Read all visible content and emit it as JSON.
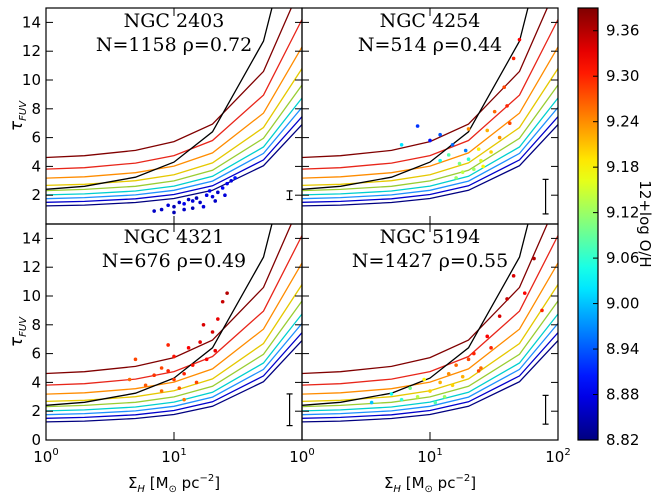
{
  "chart_data": [
    {
      "type": "scatter",
      "title": "NGC 2403",
      "subtitle": "N=1158 ρ=0.72",
      "xscale": "log",
      "xlim": [
        1,
        100
      ],
      "ylim": [
        0,
        15
      ],
      "xticks": [
        {
          "value": 1,
          "label": "10",
          "exponent": "0"
        },
        {
          "value": 10,
          "label": "10",
          "exponent": "1"
        }
      ],
      "x_tick_labels": false,
      "yticks": [
        2,
        4,
        6,
        8,
        10,
        12,
        14
      ],
      "y_tick_labels": true,
      "y_label": {
        "symbol": "τ",
        "subscript": "FUV"
      },
      "x": [
        8,
        9,
        10,
        11,
        12,
        13,
        14,
        15,
        16,
        18,
        20,
        22,
        24,
        26,
        28,
        30,
        10,
        12,
        17,
        19,
        7,
        25,
        14,
        21
      ],
      "values": [
        1.0,
        1.3,
        1.2,
        1.5,
        1.4,
        1.7,
        1.6,
        1.8,
        1.5,
        2.0,
        1.9,
        2.2,
        2.5,
        2.8,
        3.0,
        3.2,
        0.8,
        1.0,
        1.2,
        2.3,
        0.9,
        2.0,
        1.1,
        1.6
      ],
      "z": [
        8.86,
        8.87,
        8.85,
        8.86,
        8.88,
        8.86,
        8.87,
        8.85,
        8.86,
        8.88,
        8.87,
        8.86,
        8.89,
        8.88,
        8.87,
        8.9,
        8.85,
        8.86,
        8.87,
        8.88,
        8.86,
        8.87,
        8.85,
        8.86
      ],
      "errorbar": {
        "x": 80,
        "value": 2.0,
        "error": 0.3
      }
    },
    {
      "type": "scatter",
      "title": "NGC 4254",
      "subtitle": "N=514 ρ=0.44",
      "xscale": "log",
      "xlim": [
        1,
        100
      ],
      "ylim": [
        0,
        15
      ],
      "xticks": [
        {
          "value": 10,
          "label": "10",
          "exponent": "1"
        }
      ],
      "x_tick_labels": false,
      "yticks": [
        2,
        4,
        6,
        8,
        10,
        12,
        14
      ],
      "y_tick_labels": false,
      "x": [
        6,
        8,
        10,
        12,
        14,
        15,
        17,
        18,
        20,
        22,
        24,
        25,
        28,
        30,
        32,
        35,
        38,
        40,
        45,
        50,
        16,
        19,
        26,
        42,
        12,
        20
      ],
      "values": [
        5.5,
        6.8,
        5.8,
        6.2,
        4.8,
        5.5,
        4.2,
        3.6,
        4.5,
        3.8,
        5.2,
        4.4,
        6.5,
        5.0,
        7.8,
        6.0,
        9.5,
        8.2,
        11.5,
        12.8,
        3.2,
        5.1,
        4.0,
        7.0,
        4.4,
        6.6
      ],
      "z": [
        9.02,
        8.92,
        8.9,
        8.94,
        9.08,
        8.95,
        9.1,
        9.14,
        9.06,
        9.12,
        9.18,
        9.16,
        9.22,
        9.2,
        9.26,
        9.24,
        9.28,
        9.3,
        9.3,
        9.32,
        9.12,
        8.96,
        9.18,
        9.28,
        9.04,
        9.24
      ],
      "errorbar": {
        "x": 80,
        "value": 1.9,
        "error": 1.2
      }
    },
    {
      "type": "scatter",
      "title": "NGC 4321",
      "subtitle": "N=676 ρ=0.49",
      "xscale": "log",
      "xlim": [
        1,
        100
      ],
      "ylim": [
        0,
        15
      ],
      "xticks": [
        {
          "value": 1,
          "label": "10",
          "exponent": "0"
        },
        {
          "value": 10,
          "label": "10",
          "exponent": "1"
        }
      ],
      "x_tick_labels": true,
      "yticks": [
        0,
        2,
        4,
        6,
        8,
        10,
        12,
        14
      ],
      "y_tick_labels": true,
      "y_label": {
        "symbol": "τ",
        "subscript": "FUV"
      },
      "x_label": [
        {
          "text": "Σ"
        },
        {
          "text": "H",
          "script": "sub"
        },
        {
          "text": "  [M"
        },
        {
          "text": "⊙",
          "script": "sub"
        },
        {
          "text": " pc"
        },
        {
          "text": "−2",
          "script": "super"
        },
        {
          "text": "]"
        }
      ],
      "x": [
        4.5,
        5,
        6,
        7,
        8,
        8,
        9,
        10,
        10,
        11,
        12,
        13,
        14,
        15,
        16,
        18,
        20,
        22,
        24,
        26,
        12,
        9,
        17,
        21
      ],
      "values": [
        4.2,
        5.6,
        3.8,
        4.5,
        5.0,
        3.4,
        4.8,
        4.2,
        5.8,
        3.6,
        4.6,
        6.4,
        5.2,
        4.0,
        6.8,
        5.6,
        7.5,
        8.4,
        9.6,
        10.2,
        2.8,
        6.6,
        8.0,
        6.2
      ],
      "z": [
        9.26,
        9.28,
        9.27,
        9.29,
        9.28,
        9.26,
        9.3,
        9.29,
        9.31,
        9.27,
        9.3,
        9.32,
        9.31,
        9.28,
        9.33,
        9.32,
        9.34,
        9.33,
        9.35,
        9.36,
        9.25,
        9.3,
        9.34,
        9.33
      ],
      "errorbar": {
        "x": 80,
        "value": 2.1,
        "error": 1.1
      }
    },
    {
      "type": "scatter",
      "title": "NGC 5194",
      "subtitle": "N=1427 ρ=0.55",
      "xscale": "log",
      "xlim": [
        1,
        100
      ],
      "ylim": [
        0,
        15
      ],
      "xticks": [
        {
          "value": 1,
          "label": "10",
          "exponent": "0"
        },
        {
          "value": 10,
          "label": "10",
          "exponent": "1"
        },
        {
          "value": 100,
          "label": "10",
          "exponent": "2"
        }
      ],
      "x_tick_labels": true,
      "yticks": [
        0,
        2,
        4,
        6,
        8,
        10,
        12,
        14
      ],
      "y_tick_labels": false,
      "x_label": [
        {
          "text": "Σ"
        },
        {
          "text": "H",
          "script": "sub"
        },
        {
          "text": "  [M"
        },
        {
          "text": "⊙",
          "script": "sub"
        },
        {
          "text": " pc"
        },
        {
          "text": "−2",
          "script": "super"
        },
        {
          "text": "]"
        }
      ],
      "x": [
        3.5,
        5,
        6,
        7,
        8,
        9,
        10,
        11,
        12,
        14,
        15,
        16,
        18,
        20,
        22,
        25,
        28,
        30,
        35,
        40,
        45,
        55,
        65,
        75,
        13,
        24
      ],
      "values": [
        2.6,
        3.2,
        2.8,
        3.6,
        3.0,
        4.2,
        3.4,
        2.6,
        4.0,
        4.6,
        3.8,
        5.2,
        4.4,
        5.6,
        6.0,
        5.0,
        7.2,
        6.4,
        8.6,
        9.8,
        11.4,
        10.2,
        12.6,
        9.0,
        3.0,
        4.8
      ],
      "z": [
        9.0,
        9.04,
        9.06,
        9.1,
        9.14,
        9.18,
        9.2,
        9.08,
        9.22,
        9.24,
        9.2,
        9.26,
        9.22,
        9.28,
        9.3,
        9.26,
        9.32,
        9.3,
        9.34,
        9.35,
        9.34,
        9.32,
        9.36,
        9.3,
        9.12,
        9.28
      ],
      "errorbar": {
        "x": 80,
        "value": 2.1,
        "error": 1.0
      }
    },
    {
      "type": "colorbar",
      "label": "12+log O/H",
      "colormap": "jet",
      "clim": [
        8.82,
        9.39
      ],
      "ticks": [
        8.82,
        8.88,
        8.94,
        {
          "value": 9,
          "label": "9.00"
        },
        9.06,
        9.12,
        9.18,
        9.24,
        {
          "value": 9.3,
          "label": "9.30"
        },
        9.36
      ]
    }
  ],
  "model_curves": {
    "x": [
      1,
      2,
      5,
      10,
      20,
      50,
      100
    ],
    "series": [
      {
        "color": "#800000",
        "values": [
          4.62,
          4.74,
          5.11,
          5.72,
          6.94,
          10.6,
          16.7
        ]
      },
      {
        "color": "#e8261a",
        "values": [
          3.81,
          3.91,
          4.23,
          4.75,
          5.8,
          8.95,
          14.2
        ]
      },
      {
        "color": "#ff8c00",
        "values": [
          3.19,
          3.28,
          3.56,
          4.02,
          4.94,
          7.7,
          12.3
        ]
      },
      {
        "color": "#e6c800",
        "values": [
          2.68,
          2.76,
          3.01,
          3.42,
          4.24,
          6.7,
          10.8
        ]
      },
      {
        "color": "#9acd32",
        "values": [
          2.32,
          2.4,
          2.62,
          2.99,
          3.73,
          5.95,
          9.65
        ]
      },
      {
        "color": "#00d0d0",
        "values": [
          2.02,
          2.09,
          2.29,
          2.63,
          3.31,
          5.35,
          8.75
        ]
      },
      {
        "color": "#1e90ff",
        "values": [
          1.76,
          1.83,
          2.02,
          2.34,
          2.98,
          4.9,
          8.1
        ]
      },
      {
        "color": "#0000cd",
        "values": [
          1.51,
          1.57,
          1.75,
          2.05,
          2.65,
          4.45,
          7.45
        ]
      },
      {
        "color": "#000080",
        "values": [
          1.26,
          1.31,
          1.49,
          1.77,
          2.34,
          4.05,
          6.9
        ]
      },
      {
        "color": "#000000",
        "values": [
          2.41,
          2.62,
          3.25,
          4.3,
          6.4,
          12.7,
          23.2
        ]
      }
    ]
  }
}
